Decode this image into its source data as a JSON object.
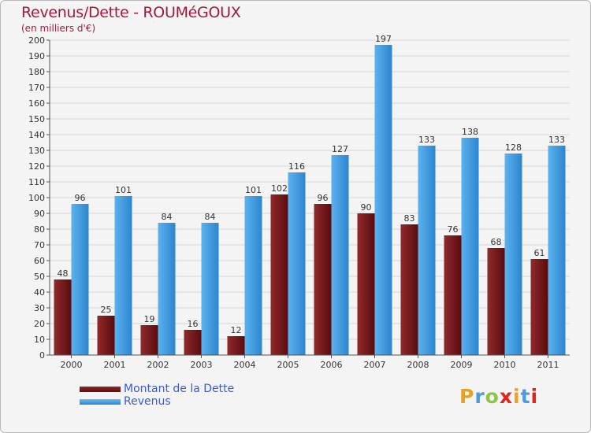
{
  "chart_data": {
    "type": "bar",
    "title": "Revenus/Dette - ROUMéGOUX",
    "subtitle": "(en milliers d'€)",
    "categories": [
      "2000",
      "2001",
      "2002",
      "2003",
      "2004",
      "2005",
      "2006",
      "2007",
      "2008",
      "2009",
      "2010",
      "2011"
    ],
    "series": [
      {
        "name": "Montant de la Dette",
        "color": "#7a1418",
        "values": [
          48,
          25,
          19,
          16,
          12,
          102,
          96,
          90,
          83,
          76,
          68,
          61
        ]
      },
      {
        "name": "Revenus",
        "color": "#3d98dc",
        "values": [
          96,
          101,
          84,
          84,
          101,
          116,
          127,
          197,
          133,
          138,
          128,
          133
        ]
      }
    ],
    "ylim": [
      0,
      200
    ],
    "ytick_step": 10,
    "grid": true,
    "legend_position": "bottom-left"
  },
  "brand": {
    "letters": [
      "P",
      "r",
      "o",
      "x",
      "i",
      "t",
      "i"
    ],
    "colors": [
      "#e8a21d",
      "#4b9be0",
      "#8cc63f",
      "#e2231a",
      "#f0a020",
      "#4b9be0",
      "#e2231a"
    ]
  }
}
